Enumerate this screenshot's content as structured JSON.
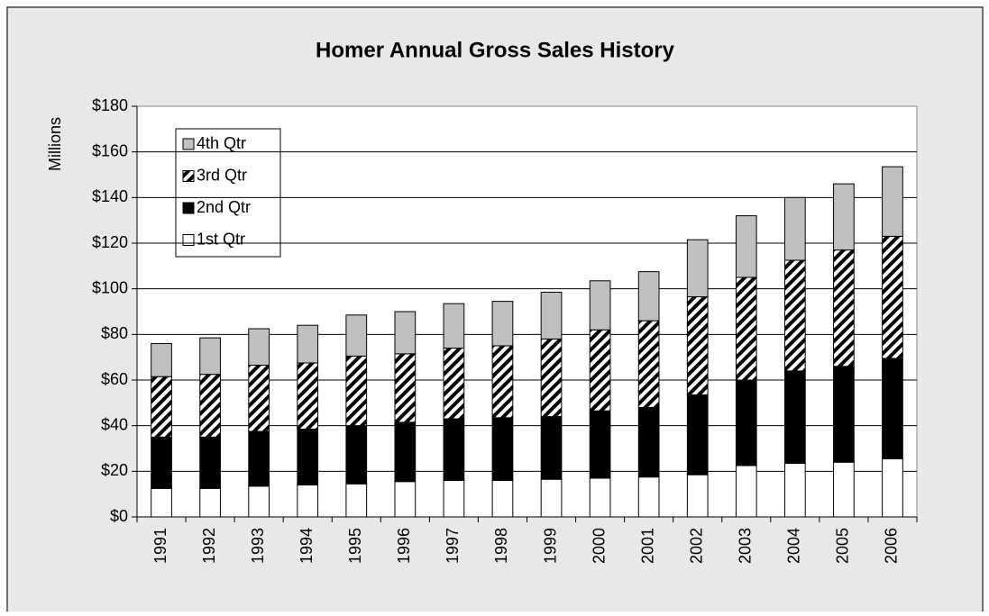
{
  "chart_data": {
    "type": "stacked_bar",
    "title": "Homer Annual Gross Sales History",
    "y_label": "Millions",
    "categories": [
      "1991",
      "1992",
      "1993",
      "1994",
      "1995",
      "1996",
      "1997",
      "1998",
      "1999",
      "2000",
      "2001",
      "2002",
      "2003",
      "2004",
      "2005",
      "2006"
    ],
    "series": [
      {
        "name": "1st Qtr",
        "color": "#ffffff",
        "values": [
          12.5,
          12.5,
          13.5,
          14,
          14.5,
          15.5,
          16,
          16,
          16.5,
          17,
          17.5,
          18.5,
          22.5,
          23.5,
          24,
          25.5
        ]
      },
      {
        "name": "2nd Qtr",
        "color": "#000000",
        "values": [
          22.5,
          22.5,
          24,
          24.5,
          25.5,
          26,
          27,
          27.5,
          27.5,
          29.5,
          30.5,
          35,
          37.5,
          40.5,
          42,
          44
        ]
      },
      {
        "name": "3rd Qtr",
        "color": "#000000",
        "pattern": "hatch",
        "values": [
          26.5,
          27.5,
          29,
          29,
          30.5,
          30,
          31,
          31.5,
          34,
          35.5,
          38,
          43,
          45,
          48.5,
          51,
          53.5
        ]
      },
      {
        "name": "4th Qtr",
        "color": "#c0c0c0",
        "values": [
          14.5,
          16,
          16,
          16.5,
          18,
          18.5,
          19.5,
          19.5,
          20.5,
          21.5,
          21.5,
          25,
          27,
          27.5,
          29,
          30.5
        ]
      }
    ],
    "ylim": [
      0,
      180
    ],
    "yticks": [
      {
        "value": 0,
        "label": "$0"
      },
      {
        "value": 20,
        "label": "$20"
      },
      {
        "value": 40,
        "label": "$40"
      },
      {
        "value": 60,
        "label": "$60"
      },
      {
        "value": 80,
        "label": "$80"
      },
      {
        "value": 100,
        "label": "$100"
      },
      {
        "value": 120,
        "label": "$120"
      },
      {
        "value": 140,
        "label": "$140"
      },
      {
        "value": 160,
        "label": "$160"
      },
      {
        "value": 180,
        "label": "$180"
      }
    ],
    "grid": true,
    "legend": "top-left"
  }
}
